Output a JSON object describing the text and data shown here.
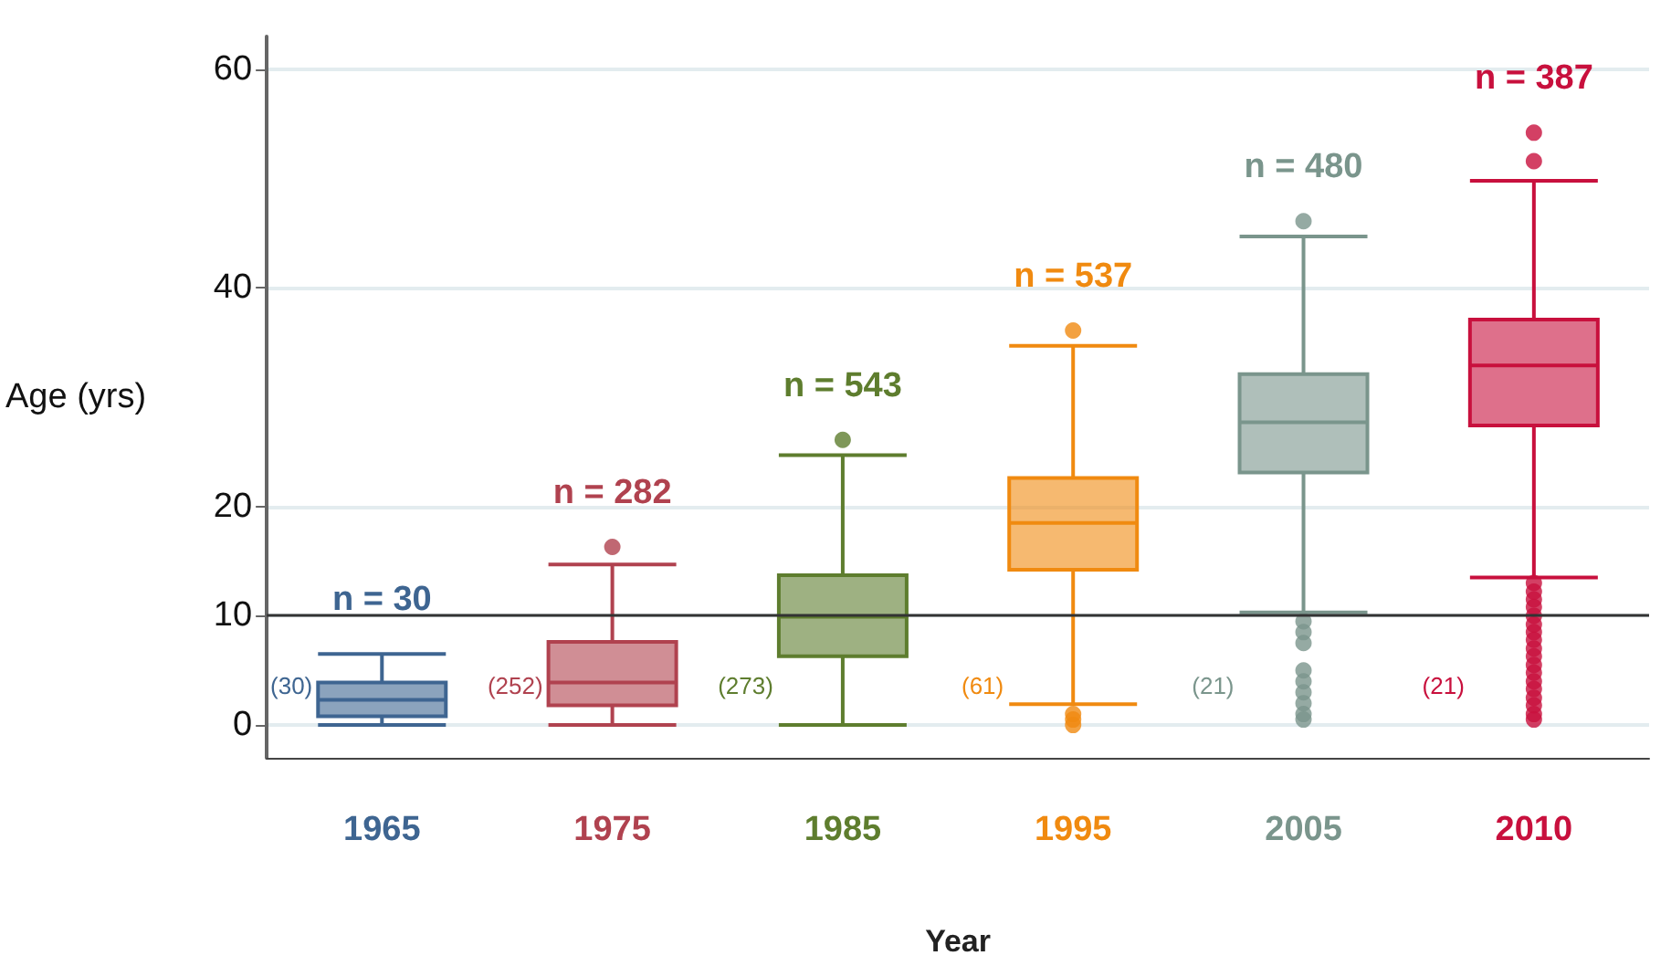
{
  "chart_data": {
    "type": "box",
    "xlabel": "Year",
    "ylabel": "Age (yrs)",
    "categories": [
      "1965",
      "1975",
      "1985",
      "1995",
      "2005",
      "2010"
    ],
    "colors": [
      "#3e6591",
      "#b0424f",
      "#5e7d2e",
      "#f08a10",
      "#7a958c",
      "#c8103d"
    ],
    "boxes": [
      {
        "low": 0,
        "q1": 0.8,
        "median": 2.3,
        "q3": 3.9,
        "high": 6.5
      },
      {
        "low": 0,
        "q1": 1.8,
        "median": 3.9,
        "q3": 7.6,
        "high": 14.7,
        "outliers": [
          16.3
        ]
      },
      {
        "low": 0,
        "q1": 6.3,
        "median": 9.9,
        "q3": 13.7,
        "high": 24.7,
        "outliers": [
          26.1
        ]
      },
      {
        "low": 1.9,
        "q1": 14.2,
        "median": 18.5,
        "q3": 22.6,
        "high": 34.7,
        "outliers": [
          36.1,
          1,
          0.5,
          0
        ]
      },
      {
        "low": 10.3,
        "q1": 23.1,
        "median": 27.7,
        "q3": 32.1,
        "high": 44.7,
        "outliers": [
          46.1,
          9.5,
          8.5,
          7.5,
          5,
          4,
          3,
          2,
          1,
          0.5
        ]
      },
      {
        "low": 13.5,
        "q1": 27.4,
        "median": 32.9,
        "q3": 37.1,
        "high": 49.8,
        "outliers": [
          51.6,
          54.2,
          13,
          12.2,
          11.5,
          10.8,
          10,
          9.2,
          8.5,
          7.8,
          7,
          6.3,
          5.5,
          4.8,
          4,
          3.3,
          2.5,
          1.8,
          1,
          0.5
        ]
      }
    ],
    "annotations": [
      "n = 30",
      "(30)",
      "n = 282",
      "(252)",
      "n = 543",
      "(273)",
      "n = 537",
      "(61)",
      "n = 480",
      "(21)",
      "n = 387",
      "(21)"
    ],
    "ylim": [
      -3,
      63
    ],
    "yticks": [
      0,
      10,
      20,
      40,
      60
    ],
    "grid": "y",
    "ref_lines": [
      {
        "axis": "y",
        "value": 10,
        "color": "#333333"
      }
    ]
  }
}
